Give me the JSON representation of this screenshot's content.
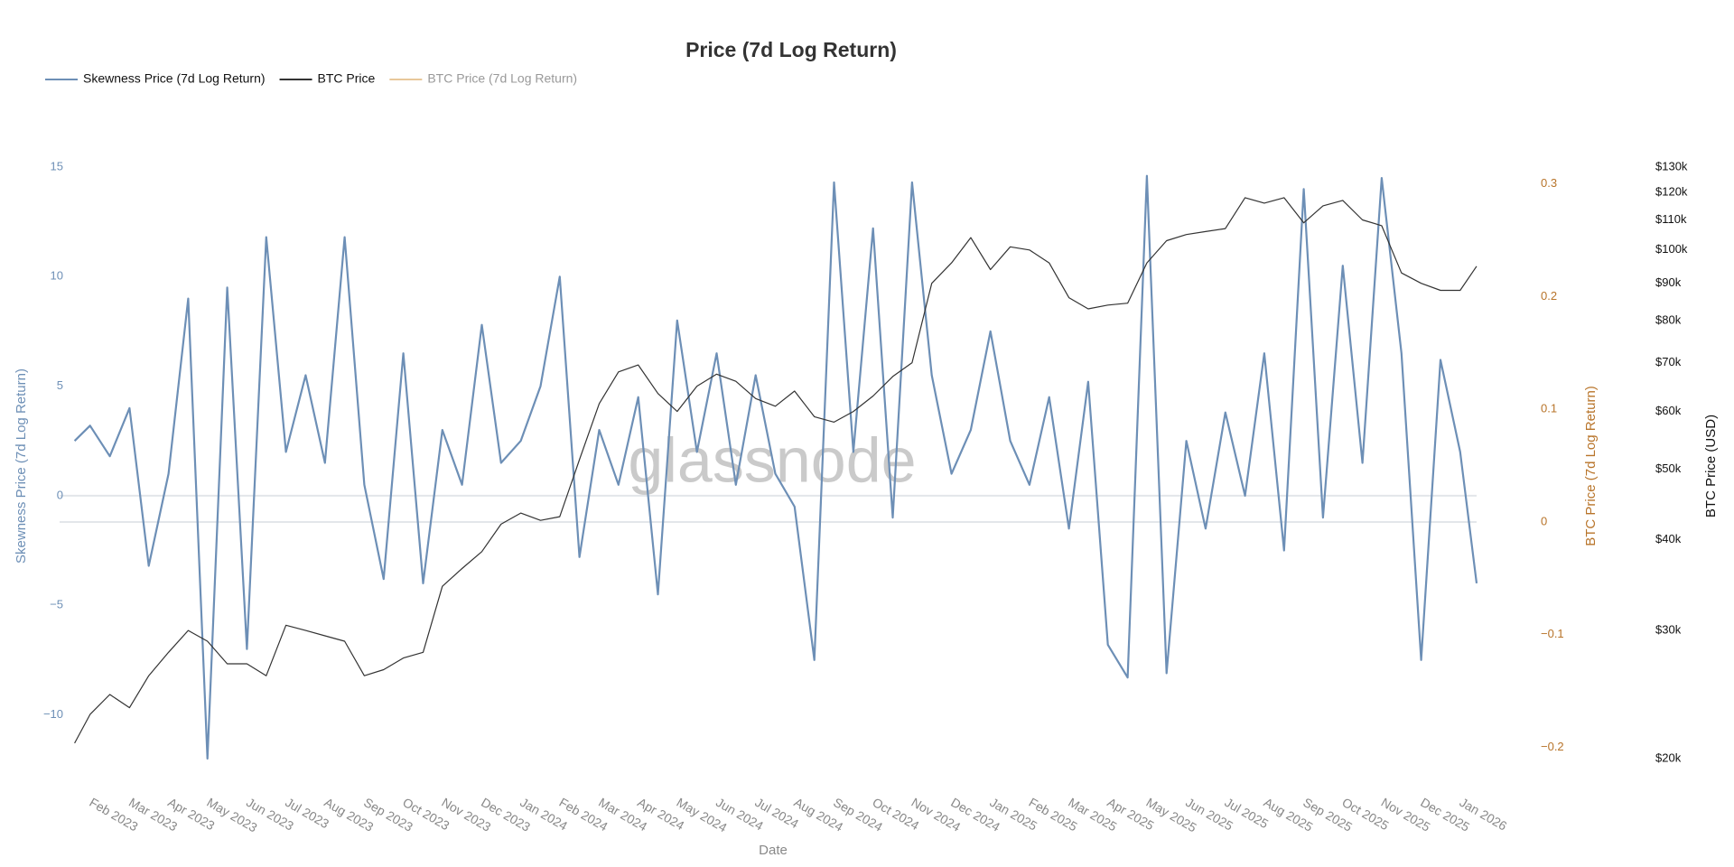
{
  "chart_data": {
    "type": "line",
    "title": "Price (7d Log Return)",
    "watermark": "glassnode",
    "x_label": "Date",
    "y_label": "Skewness Price (7d Log Return)",
    "y2_label": "BTC Price (7d Log Return)",
    "y3_label": "BTC Price (USD)",
    "y3_log": true,
    "zero_line": true,
    "legend": "top-left",
    "xlim": [
      2023.047,
      2026.035
    ],
    "xticks": [
      {
        "value": 2023.083,
        "label": "Feb 2023"
      },
      {
        "value": 2023.167,
        "label": "Mar 2023"
      },
      {
        "value": 2023.25,
        "label": "Apr 2023"
      },
      {
        "value": 2023.333,
        "label": "May 2023"
      },
      {
        "value": 2023.417,
        "label": "Jun 2023"
      },
      {
        "value": 2023.5,
        "label": "Jul 2023"
      },
      {
        "value": 2023.583,
        "label": "Aug 2023"
      },
      {
        "value": 2023.667,
        "label": "Sep 2023"
      },
      {
        "value": 2023.75,
        "label": "Oct 2023"
      },
      {
        "value": 2023.833,
        "label": "Nov 2023"
      },
      {
        "value": 2023.917,
        "label": "Dec 2023"
      },
      {
        "value": 2024.0,
        "label": "Jan 2024"
      },
      {
        "value": 2024.083,
        "label": "Feb 2024"
      },
      {
        "value": 2024.167,
        "label": "Mar 2024"
      },
      {
        "value": 2024.25,
        "label": "Apr 2024"
      },
      {
        "value": 2024.333,
        "label": "May 2024"
      },
      {
        "value": 2024.417,
        "label": "Jun 2024"
      },
      {
        "value": 2024.5,
        "label": "Jul 2024"
      },
      {
        "value": 2024.583,
        "label": "Aug 2024"
      },
      {
        "value": 2024.667,
        "label": "Sep 2024"
      },
      {
        "value": 2024.75,
        "label": "Oct 2024"
      },
      {
        "value": 2024.833,
        "label": "Nov 2024"
      },
      {
        "value": 2024.917,
        "label": "Dec 2024"
      },
      {
        "value": 2025.0,
        "label": "Jan 2025"
      },
      {
        "value": 2025.083,
        "label": "Feb 2025"
      },
      {
        "value": 2025.167,
        "label": "Mar 2025"
      },
      {
        "value": 2025.25,
        "label": "Apr 2025"
      },
      {
        "value": 2025.333,
        "label": "May 2025"
      },
      {
        "value": 2025.417,
        "label": "Jun 2025"
      },
      {
        "value": 2025.5,
        "label": "Jul 2025"
      },
      {
        "value": 2025.583,
        "label": "Aug 2025"
      },
      {
        "value": 2025.667,
        "label": "Sep 2025"
      },
      {
        "value": 2025.75,
        "label": "Oct 2025"
      },
      {
        "value": 2025.833,
        "label": "Nov 2025"
      },
      {
        "value": 2025.917,
        "label": "Dec 2025"
      },
      {
        "value": 2026.0,
        "label": "Jan 2026"
      }
    ],
    "ylim": [
      -12,
      15
    ],
    "yticks": [
      15,
      10,
      5,
      0,
      {
        "value": -5,
        "label": "−5"
      },
      {
        "value": -10,
        "label": "−10"
      }
    ],
    "y2lim": [
      -0.21,
      0.315
    ],
    "y2ticks": [
      0.3,
      0.2,
      0.1,
      0,
      {
        "value": -0.1,
        "label": "−0.1"
      },
      {
        "value": -0.2,
        "label": "−0.2"
      }
    ],
    "y3lim": [
      20000,
      130000
    ],
    "y3ticks": [
      {
        "value": 130000,
        "label": "$130k"
      },
      {
        "value": 120000,
        "label": "$120k"
      },
      {
        "value": 110000,
        "label": "$110k"
      },
      {
        "value": 100000,
        "label": "$100k"
      },
      {
        "value": 90000,
        "label": "$90k"
      },
      {
        "value": 80000,
        "label": "$80k"
      },
      {
        "value": 70000,
        "label": "$70k"
      },
      {
        "value": 60000,
        "label": "$60k"
      },
      {
        "value": 50000,
        "label": "$50k"
      },
      {
        "value": 40000,
        "label": "$40k"
      },
      {
        "value": 30000,
        "label": "$30k"
      },
      {
        "value": 20000,
        "label": "$20k"
      }
    ],
    "x": [
      2023.05,
      2023.083,
      2023.125,
      2023.167,
      2023.208,
      2023.25,
      2023.292,
      2023.333,
      2023.375,
      2023.417,
      2023.458,
      2023.5,
      2023.542,
      2023.583,
      2023.625,
      2023.667,
      2023.708,
      2023.75,
      2023.792,
      2023.833,
      2023.875,
      2023.917,
      2023.958,
      2024.0,
      2024.042,
      2024.083,
      2024.125,
      2024.167,
      2024.208,
      2024.25,
      2024.292,
      2024.333,
      2024.375,
      2024.417,
      2024.458,
      2024.5,
      2024.542,
      2024.583,
      2024.625,
      2024.667,
      2024.708,
      2024.75,
      2024.792,
      2024.833,
      2024.875,
      2024.917,
      2024.958,
      2025.0,
      2025.042,
      2025.083,
      2025.125,
      2025.167,
      2025.208,
      2025.25,
      2025.292,
      2025.333,
      2025.375,
      2025.417,
      2025.458,
      2025.5,
      2025.542,
      2025.583,
      2025.625,
      2025.667,
      2025.708,
      2025.75,
      2025.792,
      2025.833,
      2025.875,
      2025.917,
      2025.958,
      2026.0,
      2026.035
    ],
    "series": [
      {
        "name": "Skewness Price (7d Log Return)",
        "color": "#6d8fb6",
        "axis": "y",
        "values": [
          2.5,
          3.2,
          1.8,
          4.0,
          -3.2,
          1.0,
          9.0,
          -12,
          9.5,
          -7,
          11.8,
          2,
          5.5,
          1.5,
          11.8,
          0.5,
          -3.8,
          6.5,
          -4,
          3,
          0.5,
          7.8,
          1.5,
          2.5,
          5,
          10,
          -2.8,
          3,
          0.5,
          4.5,
          -4.5,
          8,
          2,
          6.5,
          0.5,
          5.5,
          1,
          -0.5,
          -7.5,
          14.3,
          2,
          12.2,
          -1,
          14.3,
          5.5,
          1,
          3,
          7.5,
          2.5,
          0.5,
          4.5,
          -1.5,
          5.2,
          -6.8,
          -8.3,
          14.6,
          -8.1,
          2.5,
          -1.5,
          3.8,
          0,
          6.5,
          -2.5,
          14,
          -1,
          10.5,
          1.5,
          14.5,
          6.5,
          -7.5,
          6.2,
          2,
          -4
        ]
      },
      {
        "name": "BTC Price",
        "color": "#333333",
        "axis": "y3",
        "values": [
          21000,
          23000,
          24500,
          23500,
          26000,
          28000,
          30000,
          29000,
          27000,
          27000,
          26000,
          30500,
          30000,
          29500,
          29000,
          26000,
          26500,
          27500,
          28000,
          34500,
          36500,
          38500,
          42000,
          43500,
          42500,
          43000,
          51500,
          61500,
          68000,
          69500,
          63500,
          60000,
          65000,
          67500,
          66000,
          62500,
          61000,
          64000,
          59000,
          58000,
          60000,
          63000,
          67000,
          70000,
          90000,
          96000,
          104000,
          94000,
          101000,
          100000,
          96000,
          86000,
          83000,
          84000,
          84500,
          96000,
          103000,
          105000,
          106000,
          107000,
          118000,
          116000,
          118000,
          109000,
          115000,
          117000,
          110000,
          108000,
          93000,
          90000,
          88000,
          88000,
          95000
        ]
      },
      {
        "name": "BTC Price (7d Log Return)",
        "color": "#e8c79a",
        "axis": "y2",
        "visible": false
      }
    ]
  }
}
